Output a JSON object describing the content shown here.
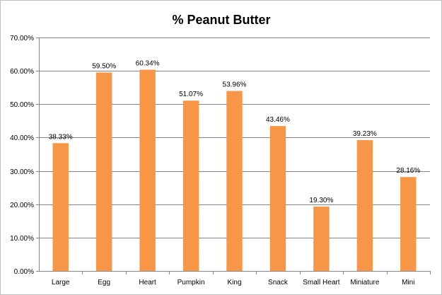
{
  "chart_data": {
    "type": "bar",
    "title": "% Peanut Butter",
    "xlabel": "",
    "ylabel": "",
    "categories": [
      "Large",
      "Egg",
      "Heart",
      "Pumpkin",
      "King",
      "Snack",
      "Small Heart",
      "Miniature",
      "Mini"
    ],
    "values": [
      0.3833,
      0.595,
      0.6034,
      0.5107,
      0.5396,
      0.4346,
      0.193,
      0.3923,
      0.2816
    ],
    "data_labels": [
      "38.33%",
      "59.50%",
      "60.34%",
      "51.07%",
      "53.96%",
      "43.46%",
      "19.30%",
      "39.23%",
      "28.16%"
    ],
    "ylim": [
      0,
      0.7
    ],
    "y_ticks": [
      0,
      0.1,
      0.2,
      0.3,
      0.4,
      0.5,
      0.6,
      0.7
    ],
    "y_tick_labels": [
      "0.00%",
      "10.00%",
      "20.00%",
      "30.00%",
      "40.00%",
      "50.00%",
      "60.00%",
      "70.00%"
    ],
    "grid": true,
    "legend": "none",
    "colors": {
      "bar": "#F79646",
      "grid": "#868686",
      "axis": "#868686",
      "border": "#BFBFBF",
      "background": "#FFFFFF"
    }
  }
}
